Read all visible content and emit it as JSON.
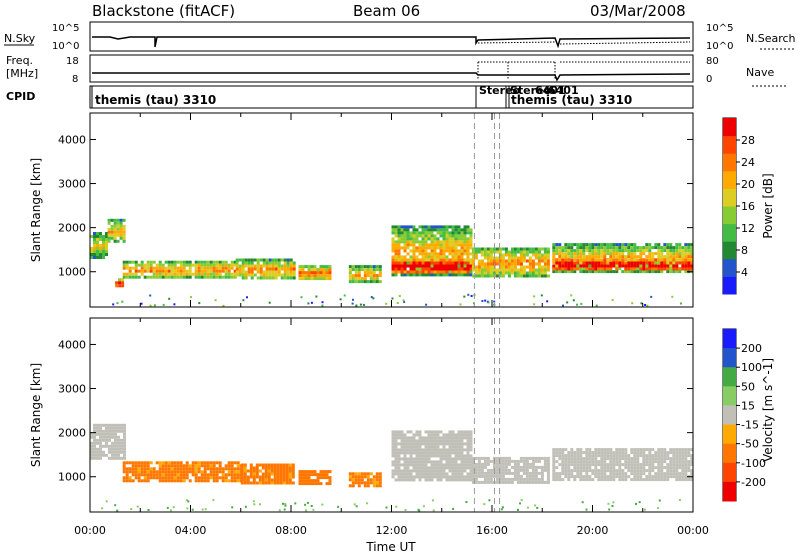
{
  "header": {
    "station": "Blackstone (fitACF)",
    "beam": "Beam 06",
    "date": "03/Mar/2008"
  },
  "strip_panels": {
    "nsky": {
      "label": "N.Sky",
      "ticks": [
        "10^5",
        "10^0"
      ]
    },
    "nsearch": {
      "label": "N.Search",
      "ticks": [
        "10^5",
        "10^0"
      ]
    },
    "freq": {
      "label_line1": "Freq.",
      "label_line2": "[MHz]",
      "ticks": [
        "18",
        "8"
      ]
    },
    "nave": {
      "label": "Nave",
      "ticks": [
        "80",
        "0"
      ]
    },
    "cpid": {
      "label": "CPID",
      "programs": [
        {
          "name": "themis (tau) 3310",
          "start": 0.0
        },
        {
          "name": "Stereo",
          "start": 15.3
        },
        {
          "name": "Stereo",
          "start": 16.1
        },
        {
          "name": "6401",
          "start": 16.6
        },
        {
          "name": "6401",
          "start": 16.7
        },
        {
          "name": "themis (tau) 3310",
          "start": 16.7
        }
      ]
    }
  },
  "colors": {
    "power_scale": [
      "#1a1aff",
      "#2255cc",
      "#228833",
      "#44bb44",
      "#88cc33",
      "#ddcc22",
      "#ffaa00",
      "#ff7700",
      "#ff4400",
      "#ee0000"
    ],
    "velocity_scale": [
      "#ee0000",
      "#ff4400",
      "#ff7700",
      "#ffaa00",
      "#ffcc33",
      "#c0c0b8",
      "#88cc66",
      "#44aa44",
      "#2255cc",
      "#1a1aff"
    ],
    "ground_scatter": "#c0c0b8"
  },
  "chart_data": [
    {
      "type": "heatmap",
      "name": "power",
      "xlabel": "",
      "ylabel": "Slant Range [km]",
      "xlim": [
        0,
        24
      ],
      "ylim": [
        200,
        4600
      ],
      "yticks": [
        "1000",
        "2000",
        "3000",
        "4000"
      ],
      "colorbar_label": "Power [dB]",
      "colorbar_ticks": [
        "4",
        "8",
        "12",
        "16",
        "20",
        "24",
        "28"
      ],
      "colorbar_range": [
        0,
        32
      ],
      "regions": [
        {
          "x": [
            0.0,
            0.7
          ],
          "y": [
            1350,
            1900
          ],
          "value": 12
        },
        {
          "x": [
            0.7,
            1.4
          ],
          "y": [
            1700,
            2200
          ],
          "value": 14
        },
        {
          "x": [
            1.0,
            1.3
          ],
          "y": [
            650,
            850
          ],
          "value": 22
        },
        {
          "x": [
            1.3,
            5.8
          ],
          "y": [
            900,
            1250
          ],
          "value": 16
        },
        {
          "x": [
            5.8,
            8.1
          ],
          "y": [
            850,
            1300
          ],
          "value": 15
        },
        {
          "x": [
            8.3,
            9.6
          ],
          "y": [
            850,
            1150
          ],
          "value": 18
        },
        {
          "x": [
            10.3,
            11.6
          ],
          "y": [
            750,
            1150
          ],
          "value": 14
        },
        {
          "x": [
            12.0,
            15.2
          ],
          "y": [
            950,
            2050
          ],
          "value": 14
        },
        {
          "x": [
            12.0,
            15.2
          ],
          "y": [
            1000,
            1300
          ],
          "value": 26
        },
        {
          "x": [
            15.2,
            18.2
          ],
          "y": [
            900,
            1550
          ],
          "value": 16
        },
        {
          "x": [
            18.4,
            23.9
          ],
          "y": [
            1000,
            1650
          ],
          "value": 14
        },
        {
          "x": [
            18.4,
            23.9
          ],
          "y": [
            1050,
            1300
          ],
          "value": 26
        }
      ],
      "lines": [
        {
          "x": 15.3
        },
        {
          "x": 16.1
        },
        {
          "x": 16.3
        }
      ]
    },
    {
      "type": "heatmap",
      "name": "velocity",
      "xlabel": "Time UT",
      "ylabel": "Slant Range [km]",
      "xlim": [
        0,
        24
      ],
      "ylim": [
        200,
        4600
      ],
      "xticks": [
        "00:00",
        "04:00",
        "08:00",
        "12:00",
        "16:00",
        "20:00",
        "00:00"
      ],
      "yticks": [
        "1000",
        "2000",
        "3000",
        "4000"
      ],
      "colorbar_label": "Velocity [m s^-1]",
      "colorbar_ticks": [
        "200",
        "100",
        "50",
        "15",
        "-15",
        "-50",
        "-100",
        "-200"
      ],
      "regions": [
        {
          "x": [
            0.0,
            1.4
          ],
          "y": [
            1400,
            2200
          ],
          "value": 0
        },
        {
          "x": [
            1.3,
            6.0
          ],
          "y": [
            900,
            1350
          ],
          "value": -60
        },
        {
          "x": [
            6.0,
            8.1
          ],
          "y": [
            850,
            1300
          ],
          "value": -60
        },
        {
          "x": [
            8.3,
            9.6
          ],
          "y": [
            850,
            1150
          ],
          "value": -80
        },
        {
          "x": [
            10.3,
            11.6
          ],
          "y": [
            800,
            1100
          ],
          "value": -60
        },
        {
          "x": [
            12.0,
            15.2
          ],
          "y": [
            950,
            2050
          ],
          "value": 0
        },
        {
          "x": [
            15.2,
            18.2
          ],
          "y": [
            900,
            1450
          ],
          "value": 0
        },
        {
          "x": [
            18.4,
            23.9
          ],
          "y": [
            950,
            1650
          ],
          "value": 0
        }
      ],
      "lines": [
        {
          "x": 15.3
        },
        {
          "x": 16.1
        },
        {
          "x": 16.3
        }
      ]
    }
  ]
}
